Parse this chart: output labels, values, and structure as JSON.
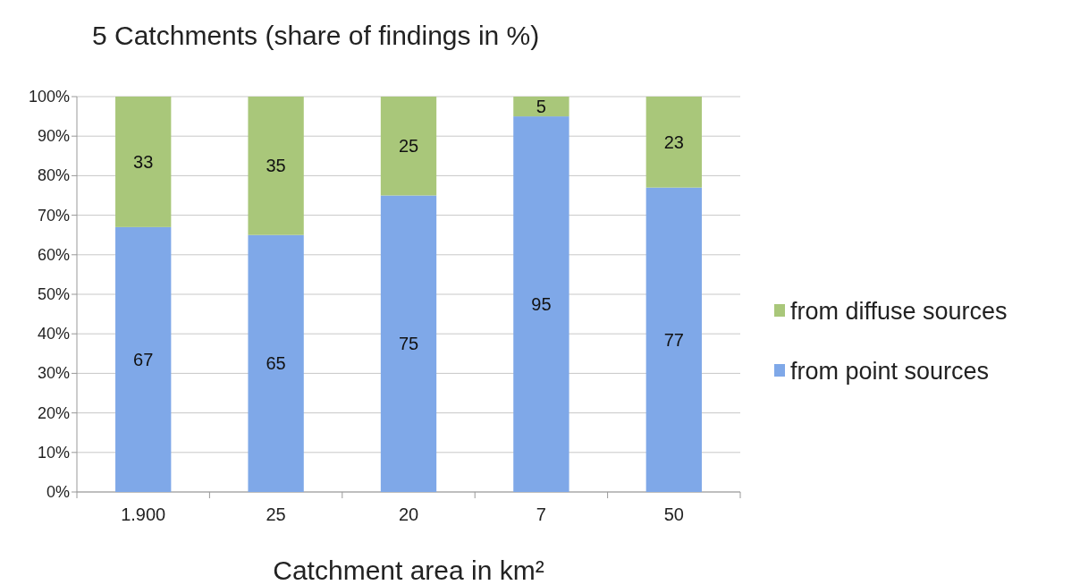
{
  "chart_data": {
    "type": "bar",
    "title": "5 Catchments (share of findings in %)",
    "xlabel": "Catchment area in km²",
    "categories": [
      "1.900",
      "25",
      "20",
      "7",
      "50"
    ],
    "stacked": true,
    "series": [
      {
        "name": "from point sources",
        "color": "#7fa8e8",
        "values": [
          67,
          65,
          75,
          95,
          77
        ]
      },
      {
        "name": "from diffuse sources",
        "color": "#a9c77a",
        "values": [
          33,
          35,
          25,
          5,
          23
        ]
      }
    ],
    "ylim": [
      0,
      100
    ],
    "yticks": [
      {
        "value": 0,
        "label": "0%"
      },
      {
        "value": 10,
        "label": "10%"
      },
      {
        "value": 20,
        "label": "20%"
      },
      {
        "value": 30,
        "label": "30%"
      },
      {
        "value": 40,
        "label": "40%"
      },
      {
        "value": 50,
        "label": "50%"
      },
      {
        "value": 60,
        "label": "60%"
      },
      {
        "value": 70,
        "label": "70%"
      },
      {
        "value": 80,
        "label": "80%"
      },
      {
        "value": 90,
        "label": "90%"
      },
      {
        "value": 100,
        "label": "100%"
      }
    ],
    "grid": "y",
    "legend": "right",
    "data_labels": true
  }
}
